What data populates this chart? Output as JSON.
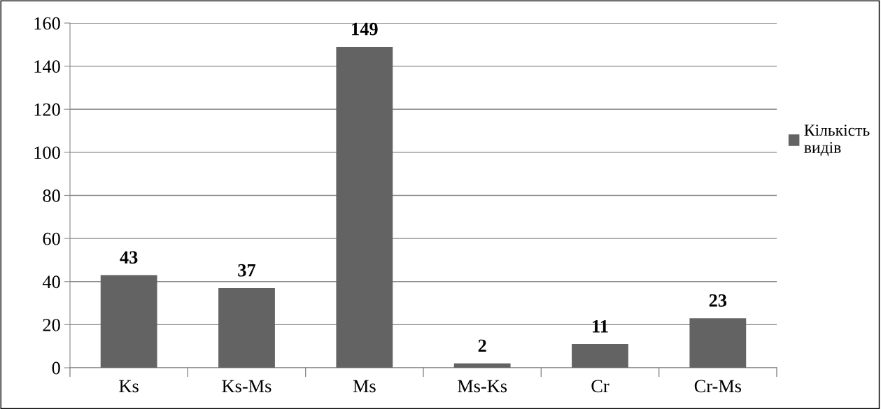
{
  "chart_data": {
    "type": "bar",
    "categories": [
      "Ks",
      "Ks-Ms",
      "Ms",
      "Ms-Ks",
      "Cr",
      "Cr-Ms"
    ],
    "series": [
      {
        "name": "Кількість видів",
        "color": "#636363",
        "values": [
          43,
          37,
          149,
          2,
          11,
          23
        ]
      }
    ],
    "ylim": [
      0,
      160
    ],
    "yticks": [
      0,
      20,
      40,
      60,
      80,
      100,
      120,
      140,
      160
    ],
    "grid": "y",
    "legend": "right",
    "data_labels": true
  }
}
